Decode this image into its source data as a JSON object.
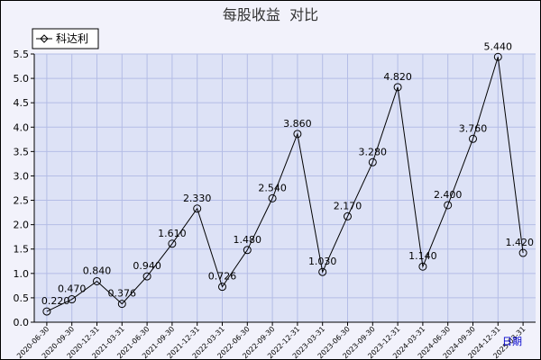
{
  "chart_data": {
    "type": "line",
    "title": "每股收益  对比",
    "xlabel": "日期",
    "ylabel": "",
    "ylim": [
      0,
      5.5
    ],
    "yticks": [
      0.0,
      0.5,
      1.0,
      1.5,
      2.0,
      2.5,
      3.0,
      3.5,
      4.0,
      4.5,
      5.0,
      5.5
    ],
    "y_tick_labels": [
      "0.0",
      "0.5",
      "1.0",
      "1.5",
      "2.0",
      "2.5",
      "3.0",
      "3.5",
      "4.0",
      "4.5",
      "5.0",
      "5.5"
    ],
    "grid": true,
    "legend_position": "top-left",
    "x": [
      "2020-06-30",
      "2020-09-30",
      "2020-12-31",
      "2021-03-31",
      "2021-06-30",
      "2021-09-30",
      "2021-12-31",
      "2022-03-31",
      "2022-06-30",
      "2022-09-30",
      "2022-12-31",
      "2023-03-31",
      "2023-06-30",
      "2023-09-30",
      "2023-12-31",
      "2024-03-31",
      "2024-06-30",
      "2024-09-30",
      "2024-12-31",
      "2025-03-31"
    ],
    "series": [
      {
        "name": "科达利",
        "values": [
          0.22,
          0.47,
          0.84,
          0.376,
          0.94,
          1.61,
          2.33,
          0.726,
          1.48,
          2.54,
          3.86,
          1.03,
          2.17,
          3.28,
          4.82,
          1.14,
          2.4,
          3.76,
          5.44,
          1.42
        ],
        "labels": [
          "0.220",
          "0.470",
          "0.840",
          "0.376",
          "0.940",
          "1.610",
          "2.330",
          "0.726",
          "1.480",
          "2.540",
          "3.860",
          "1.030",
          "2.170",
          "3.280",
          "4.820",
          "1.140",
          "2.400",
          "3.760",
          "5.440",
          "1.420"
        ]
      }
    ]
  },
  "colors": {
    "plot_background": "#dde2f6",
    "outer_background": "#f2f2fb",
    "grid": "#b4bde6",
    "line": "#000000",
    "xlabel": "#0000cc"
  }
}
